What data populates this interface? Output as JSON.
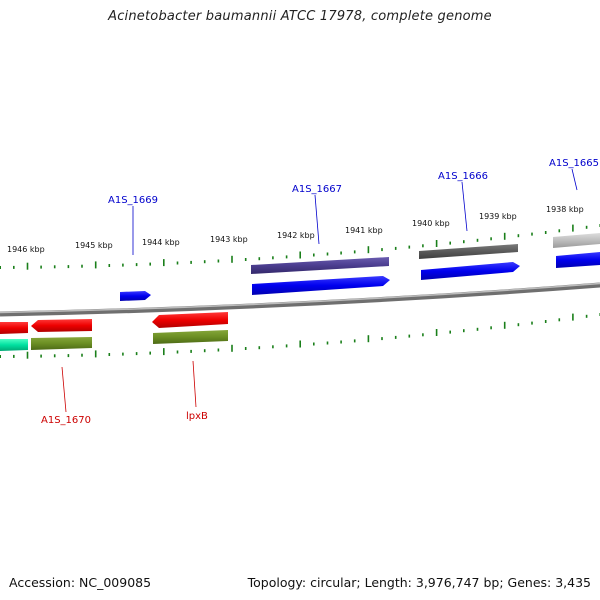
{
  "title": "Acinetobacter baumannii ATCC 17978, complete genome",
  "footer": {
    "accession": "Accession: NC_009085",
    "stats": "Topology: circular; Length: 3,976,747 bp; Genes: 3,435"
  },
  "scale_ticks": [
    "1946 kbp",
    "1945 kbp",
    "1944 kbp",
    "1943 kbp",
    "1942 kbp",
    "1941 kbp",
    "1940 kbp",
    "1939 kbp",
    "1938 kbp"
  ],
  "gene_labels": {
    "forward": [
      "A1S_1669",
      "A1S_1667",
      "A1S_1666",
      "A1S_1665"
    ],
    "reverse": [
      "A1S_1670",
      "lpxB"
    ]
  },
  "colors": {
    "forward_label": "#0000cc",
    "reverse_label": "#cc0000",
    "cds_blue": "#0000ee",
    "cds_red": "#ee0000",
    "cds_green": "#6b8e23",
    "cds_teal": "#00e0a0",
    "feature_purple": "#4b3d8f",
    "feature_darkgray": "#5a5a5a",
    "feature_lightgray": "#bdbdbd",
    "backbone": "#8a8a8a",
    "tick": "#1a7f1a"
  }
}
